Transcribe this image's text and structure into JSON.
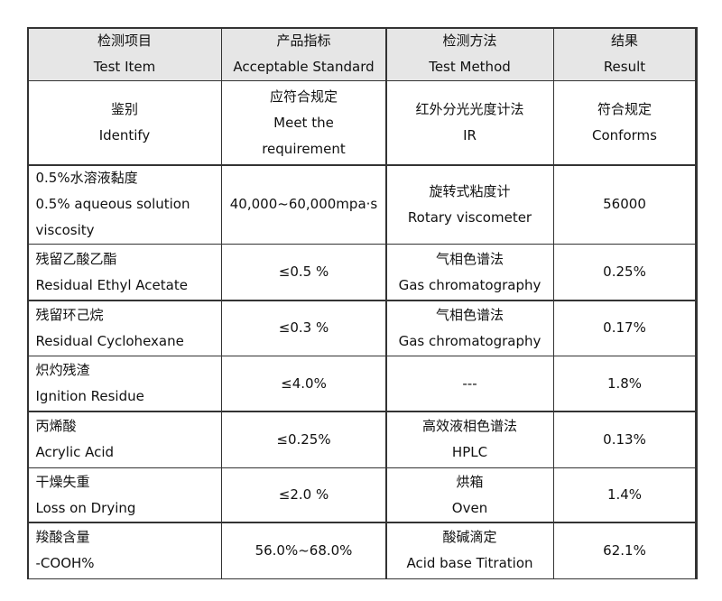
{
  "table": {
    "header": [
      [
        "检测项目",
        "Test Item"
      ],
      [
        "产品指标",
        "Acceptable Standard"
      ],
      [
        "检测方法",
        "Test Method"
      ],
      [
        "结果",
        "Result"
      ]
    ],
    "rows": [
      [
        [
          "鉴别",
          "Identify"
        ],
        [
          "应符合规定",
          "Meet the",
          "requirement"
        ],
        [
          "红外分光光度计法",
          "IR"
        ],
        [
          "符合规定",
          "Conforms"
        ]
      ],
      [
        [
          "0.5%水溶液黏度",
          "0.5% aqueous solution",
          "viscosity"
        ],
        [
          "40,000~60,000mpa·s"
        ],
        [
          "旋转式粘度计",
          "Rotary viscometer"
        ],
        [
          "56000"
        ]
      ],
      [
        [
          "残留乙酸乙酯",
          "Residual Ethyl Acetate"
        ],
        [
          "≤0.5 %"
        ],
        [
          "气相色谱法",
          "Gas chromatography"
        ],
        [
          "0.25%"
        ]
      ],
      [
        [
          "残留环己烷",
          "Residual Cyclohexane"
        ],
        [
          "≤0.3 %"
        ],
        [
          "气相色谱法",
          "Gas chromatography"
        ],
        [
          "0.17%"
        ]
      ],
      [
        [
          "炽灼残渣",
          "Ignition Residue"
        ],
        [
          "≤4.0%"
        ],
        [
          "---"
        ],
        [
          "1.8%"
        ]
      ],
      [
        [
          "丙烯酸",
          "Acrylic Acid"
        ],
        [
          "≤0.25%"
        ],
        [
          "高效液相色谱法",
          "HPLC"
        ],
        [
          "0.13%"
        ]
      ],
      [
        [
          "干燥失重",
          "Loss on Drying"
        ],
        [
          "≤2.0 %"
        ],
        [
          "烘箱",
          "Oven"
        ],
        [
          "1.4%"
        ]
      ],
      [
        [
          "羧酸含量",
          "-COOH%"
        ],
        [
          "56.0%~68.0%"
        ],
        [
          "酸碱滴定",
          "Acid base Titration"
        ],
        [
          "62.1%"
        ]
      ]
    ]
  }
}
